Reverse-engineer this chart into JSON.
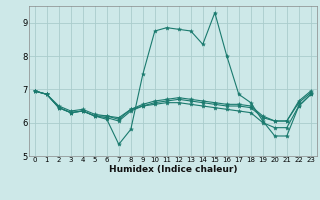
{
  "title": "",
  "xlabel": "Humidex (Indice chaleur)",
  "ylabel": "",
  "bg_color": "#cde8e8",
  "grid_color": "#aacccc",
  "line_color": "#1a7a6e",
  "xlim": [
    -0.5,
    23.5
  ],
  "ylim": [
    5,
    9.5
  ],
  "yticks": [
    5,
    6,
    7,
    8,
    9
  ],
  "xticks": [
    0,
    1,
    2,
    3,
    4,
    5,
    6,
    7,
    8,
    9,
    10,
    11,
    12,
    13,
    14,
    15,
    16,
    17,
    18,
    19,
    20,
    21,
    22,
    23
  ],
  "lines": [
    [
      0,
      6.95,
      1,
      6.85,
      2,
      6.45,
      3,
      6.3,
      4,
      6.35,
      5,
      6.2,
      6,
      6.1,
      7,
      5.35,
      8,
      5.8,
      9,
      7.45,
      10,
      8.75,
      11,
      8.85,
      12,
      8.8,
      13,
      8.75,
      14,
      8.35,
      15,
      9.3,
      16,
      8.0,
      17,
      6.85,
      18,
      6.6,
      19,
      6.05,
      20,
      5.6,
      21,
      5.6,
      22,
      6.5,
      23,
      6.85
    ],
    [
      0,
      6.95,
      1,
      6.85,
      2,
      6.45,
      3,
      6.3,
      4,
      6.35,
      5,
      6.2,
      6,
      6.15,
      7,
      6.05,
      8,
      6.35,
      9,
      6.5,
      10,
      6.55,
      11,
      6.6,
      12,
      6.6,
      13,
      6.55,
      14,
      6.5,
      15,
      6.45,
      16,
      6.4,
      17,
      6.35,
      18,
      6.3,
      19,
      6.0,
      20,
      5.85,
      21,
      5.85,
      22,
      6.5,
      23,
      6.85
    ],
    [
      0,
      6.95,
      1,
      6.85,
      2,
      6.45,
      3,
      6.3,
      4,
      6.35,
      5,
      6.2,
      6,
      6.2,
      7,
      6.1,
      8,
      6.4,
      9,
      6.5,
      10,
      6.6,
      11,
      6.65,
      12,
      6.7,
      13,
      6.65,
      14,
      6.6,
      15,
      6.55,
      16,
      6.5,
      17,
      6.5,
      18,
      6.45,
      19,
      6.15,
      20,
      6.05,
      21,
      6.05,
      22,
      6.6,
      23,
      6.9
    ],
    [
      0,
      6.95,
      1,
      6.85,
      2,
      6.5,
      3,
      6.35,
      4,
      6.4,
      5,
      6.25,
      6,
      6.2,
      7,
      6.15,
      8,
      6.4,
      9,
      6.55,
      10,
      6.65,
      11,
      6.7,
      12,
      6.75,
      13,
      6.7,
      14,
      6.65,
      15,
      6.6,
      16,
      6.55,
      17,
      6.55,
      18,
      6.5,
      19,
      6.2,
      20,
      6.05,
      21,
      6.05,
      22,
      6.65,
      23,
      6.95
    ]
  ]
}
